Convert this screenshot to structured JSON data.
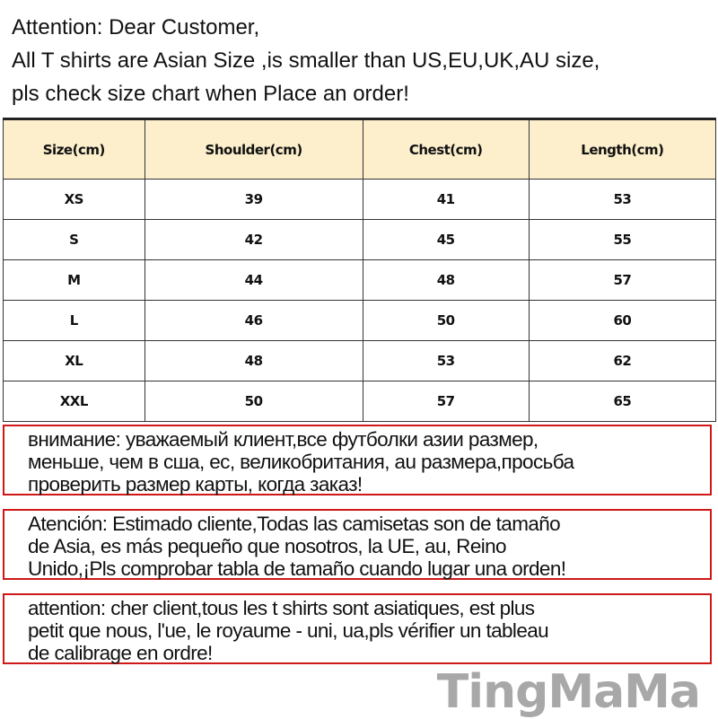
{
  "intro": [
    "Attention: Dear Customer,",
    "All T shirts are  Asian Size ,is smaller than US,EU,UK,AU size,",
    "pls check size chart when Place an order!"
  ],
  "table": {
    "headers": [
      "Size(cm)",
      "Shoulder(cm)",
      "Chest(cm)",
      "Length(cm)"
    ],
    "rows": [
      [
        "XS",
        "39",
        "41",
        "53"
      ],
      [
        "S",
        "42",
        "45",
        "55"
      ],
      [
        "M",
        "44",
        "48",
        "57"
      ],
      [
        "L",
        "46",
        "50",
        "60"
      ],
      [
        "XL",
        "48",
        "53",
        "62"
      ],
      [
        "XXL",
        "50",
        "57",
        "65"
      ]
    ],
    "header_bg": "#fdefcc"
  },
  "notices": [
    [
      "внимание: уважаемый клиент,все футболки азии размер,",
      "меньше, чем в сша, ес, великобритания, au размера,просьба",
      "проверить размер карты, когда заказ!"
    ],
    [
      "Atención: Estimado cliente,Todas las camisetas son de tamaño",
      "de Asia, es más pequeño que nosotros, la UE, au, Reino",
      "Unido,¡Pls comprobar tabla de tamaño cuando lugar una orden!"
    ],
    [
      "attention: cher client,tous les t shirts sont asiatiques, est plus",
      "petit que nous, l'ue, le royaume - uni, ua,pls vérifier un tableau",
      "de calibrage en ordre!"
    ]
  ],
  "notice_border_color": "#d01818",
  "watermark": "TingMaMa"
}
